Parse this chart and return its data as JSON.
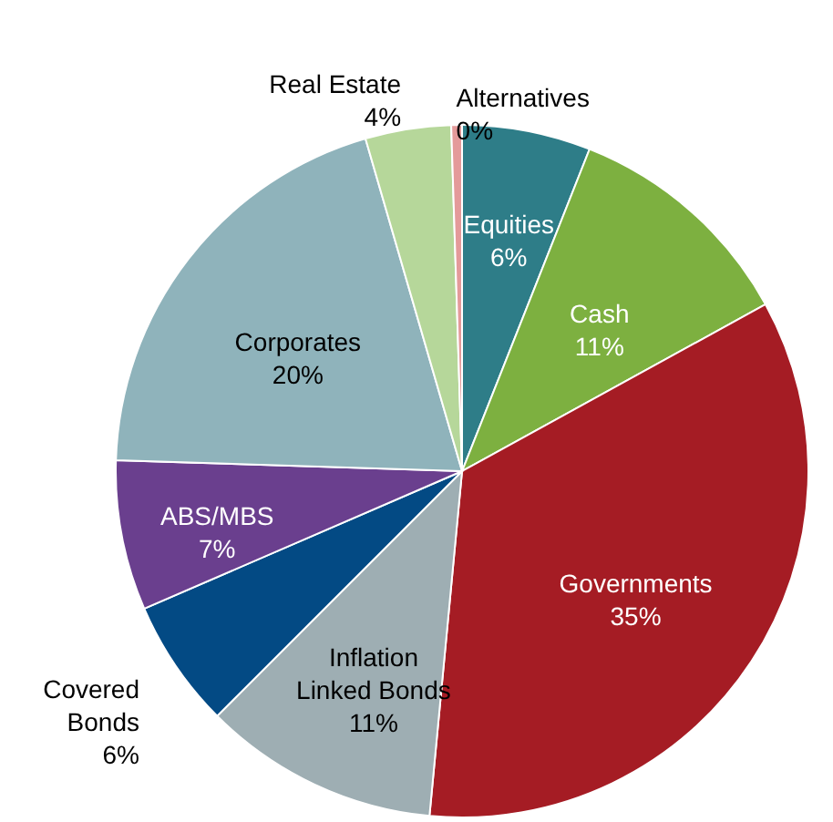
{
  "chart_data": {
    "type": "pie",
    "categories": [
      "Equities",
      "Cash",
      "Governments",
      "Inflation Linked Bonds",
      "Covered Bonds",
      "ABS/MBS",
      "Corporates",
      "Real Estate",
      "Alternatives"
    ],
    "values": [
      6,
      11,
      34.5,
      11,
      6,
      7,
      20,
      4,
      0.5
    ],
    "value_labels": [
      "6%",
      "11%",
      "35%",
      "11%",
      "6%",
      "7%",
      "20%",
      "4%",
      "0%"
    ],
    "colors": [
      "#2e7d88",
      "#7db040",
      "#a51c24",
      "#9eaeb3",
      "#034a84",
      "#6a3f8e",
      "#8fb3bb",
      "#b6d79a",
      "#e49a9a"
    ]
  }
}
